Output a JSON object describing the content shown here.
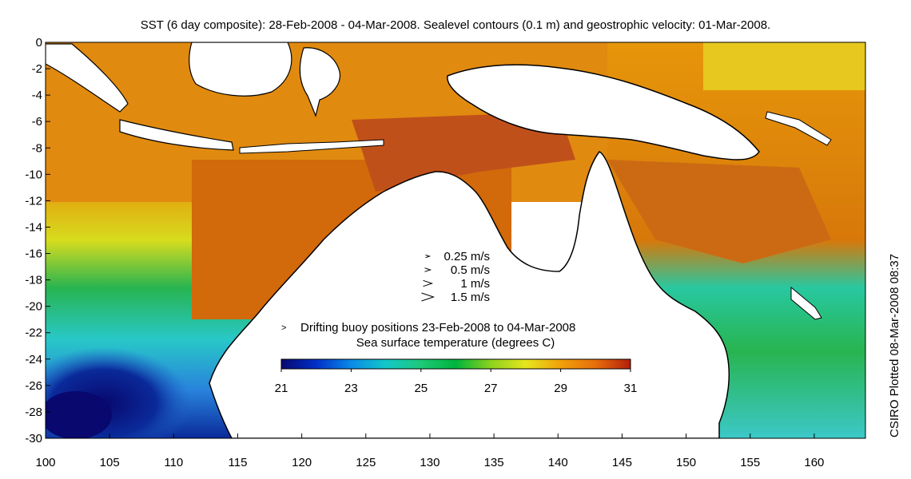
{
  "title": "SST (6 day composite): 28-Feb-2008 - 04-Mar-2008. Sealevel contours (0.1 m) and geostrophic velocity: 01-Mar-2008.",
  "credit": "CSIRO Plotted 08-Mar-2008 08:37",
  "x_ticks": [
    "100",
    "105",
    "110",
    "115",
    "120",
    "125",
    "130",
    "135",
    "140",
    "145",
    "150",
    "155",
    "160"
  ],
  "y_ticks": [
    "0",
    "-2",
    "-4",
    "-6",
    "-8",
    "-10",
    "-12",
    "-14",
    "-16",
    "-18",
    "-20",
    "-22",
    "-24",
    "-26",
    "-28",
    "-30"
  ],
  "velocity_legend": [
    {
      "label": "0.25 m/s",
      "speed": 0.25
    },
    {
      "label": "0.5 m/s",
      "speed": 0.5
    },
    {
      "label": "1 m/s",
      "speed": 1
    },
    {
      "label": "1.5 m/s",
      "speed": 1.5
    }
  ],
  "buoy_legend": {
    "marker": ">",
    "text": "Drifting buoy positions 23-Feb-2008 to 04-Mar-2008",
    "color": "#cc33cc"
  },
  "colorbar": {
    "title": "Sea surface temperature (degrees C)",
    "labels": [
      "21",
      "23",
      "25",
      "27",
      "29",
      "31"
    ],
    "range": [
      21,
      31
    ],
    "colors": [
      "#08086e",
      "#0030c8",
      "#0a8ae6",
      "#12c8c8",
      "#1ec878",
      "#00b43c",
      "#8cd21e",
      "#e6e61e",
      "#f0a00a",
      "#e66e0a",
      "#b41e0a"
    ]
  },
  "map": {
    "lon_range": [
      100,
      164
    ],
    "lat_range": [
      -30,
      0
    ],
    "sst_colors": {
      "cold": "#0a1e8c",
      "cool_blue": "#2882dc",
      "cyan": "#28c8c8",
      "green": "#28b450",
      "yellow": "#d7dc1e",
      "orange": "#e6960a",
      "dark_orange": "#d2690a",
      "red_brown": "#b43c14",
      "land": "#ffffff"
    }
  }
}
